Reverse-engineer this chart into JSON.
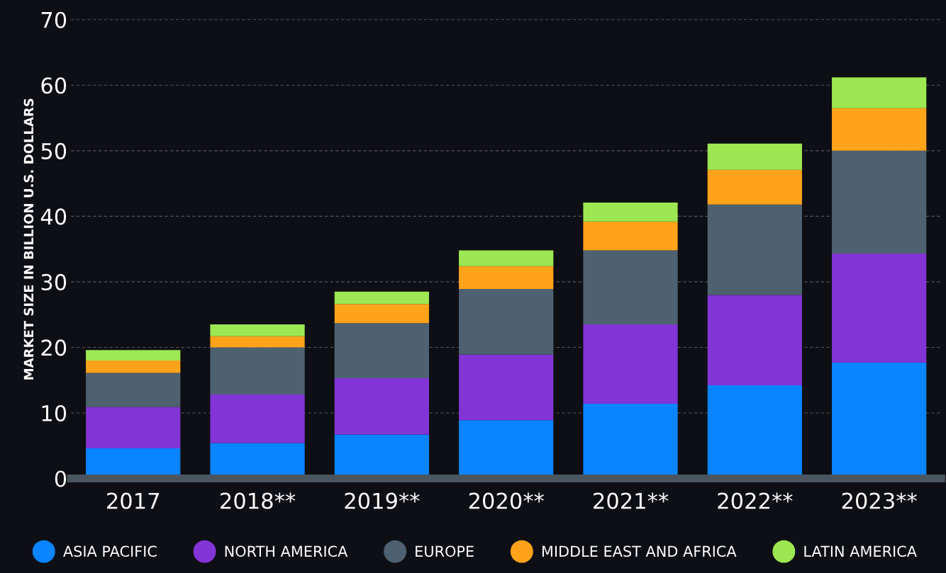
{
  "chart_data": {
    "type": "bar",
    "stacked": true,
    "ylabel": "MARKET SIZE IN BILLION U.S. DOLLARS",
    "categories": [
      "2017",
      "2018**",
      "2019**",
      "2020**",
      "2021**",
      "2022**",
      "2023**"
    ],
    "series": [
      {
        "name": "ASIA PACIFIC",
        "color": "#0a84ff",
        "values": [
          4.6,
          5.4,
          6.7,
          8.9,
          11.4,
          14.2,
          17.7
        ]
      },
      {
        "name": "NORTH AMERICA",
        "color": "#8334d6",
        "values": [
          6.3,
          7.4,
          8.6,
          10.0,
          12.1,
          13.8,
          16.6
        ]
      },
      {
        "name": "EUROPE",
        "color": "#4e6170",
        "values": [
          5.2,
          7.2,
          8.4,
          10.0,
          11.3,
          13.8,
          15.7
        ]
      },
      {
        "name": "MIDDLE EAST AND AFRICA",
        "color": "#ffa31a",
        "values": [
          1.9,
          1.7,
          2.9,
          3.5,
          4.4,
          5.3,
          6.5
        ]
      },
      {
        "name": "LATIN AMERICA",
        "color": "#9de852",
        "values": [
          1.6,
          1.8,
          1.9,
          2.4,
          2.9,
          4.0,
          4.7
        ]
      }
    ],
    "ylim": [
      0,
      73
    ],
    "yticks": [
      0,
      10,
      20,
      30,
      40,
      50,
      60,
      70
    ],
    "grid": "y",
    "legend": "bottom"
  }
}
